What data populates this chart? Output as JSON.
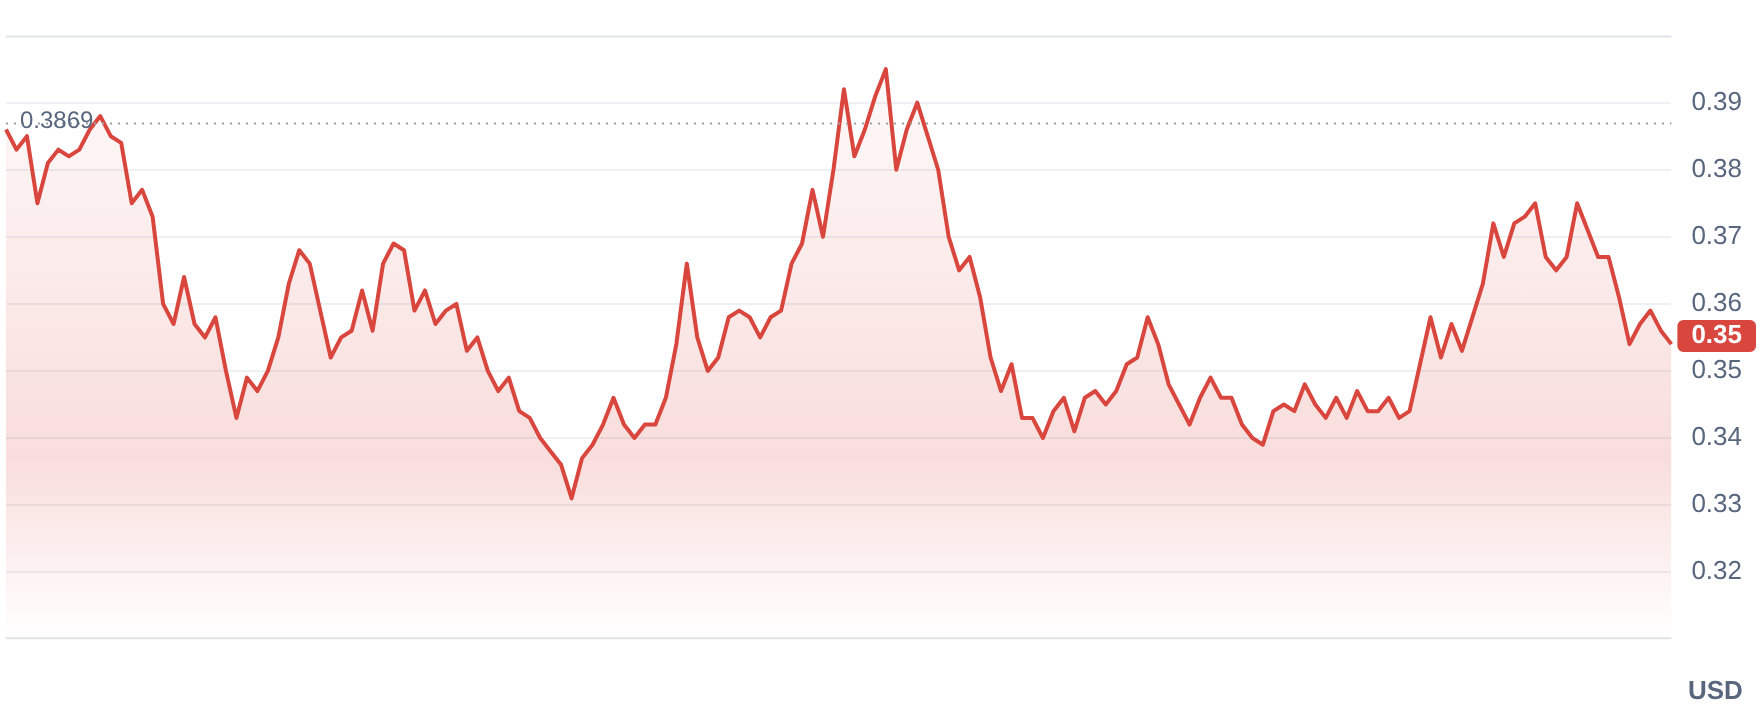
{
  "chart_data": {
    "type": "area",
    "categories": [
      null,
      null,
      null,
      null,
      null,
      null,
      null,
      null,
      null,
      null,
      null,
      null,
      null,
      null,
      null,
      null,
      null,
      null,
      null,
      null,
      null,
      null,
      null,
      null,
      null,
      null,
      null,
      null,
      null,
      null,
      null,
      null,
      null,
      null,
      null,
      null,
      null,
      null,
      null,
      null,
      null,
      null,
      null,
      null,
      null,
      null,
      null,
      null,
      null,
      null,
      null,
      null,
      null,
      null,
      null,
      null,
      null,
      null,
      null,
      null,
      null,
      null,
      null,
      null,
      null,
      null,
      null,
      null,
      null,
      null,
      null,
      null,
      null,
      null,
      null,
      null,
      null,
      null,
      null,
      null,
      null,
      null,
      null,
      null,
      null,
      null,
      null,
      null,
      null,
      null,
      null,
      null,
      null,
      null,
      null,
      null,
      null,
      null,
      null,
      null,
      null,
      null,
      null,
      null,
      null,
      null,
      null,
      null,
      null,
      null,
      null,
      null,
      null,
      null,
      null,
      null,
      null,
      null,
      null,
      null,
      null,
      null,
      null,
      null,
      null,
      null,
      null,
      null,
      null,
      null,
      null,
      null,
      null,
      null,
      null,
      null,
      null,
      null,
      null,
      null,
      null,
      null,
      null,
      null,
      null,
      null,
      null,
      null,
      null,
      null,
      null,
      null,
      null,
      null,
      null,
      null,
      null,
      null,
      null,
      null
    ],
    "series": [
      {
        "color": "#d9463e",
        "values": [
          0.386,
          0.383,
          0.385,
          0.375,
          0.381,
          0.383,
          0.382,
          0.383,
          0.386,
          0.388,
          0.385,
          0.384,
          0.375,
          0.377,
          0.373,
          0.36,
          0.357,
          0.364,
          0.357,
          0.355,
          0.358,
          0.35,
          0.343,
          0.349,
          0.347,
          0.35,
          0.355,
          0.363,
          0.368,
          0.366,
          0.359,
          0.352,
          0.355,
          0.356,
          0.362,
          0.356,
          0.366,
          0.369,
          0.368,
          0.359,
          0.362,
          0.357,
          0.359,
          0.36,
          0.353,
          0.355,
          0.35,
          0.347,
          0.349,
          0.344,
          0.343,
          0.34,
          0.338,
          0.336,
          0.331,
          0.337,
          0.339,
          0.342,
          0.346,
          0.342,
          0.34,
          0.342,
          0.342,
          0.346,
          0.354,
          0.366,
          0.355,
          0.35,
          0.352,
          0.358,
          0.359,
          0.358,
          0.355,
          0.358,
          0.359,
          0.366,
          0.369,
          0.377,
          0.37,
          0.38,
          0.392,
          0.382,
          0.386,
          0.391,
          0.395,
          0.38,
          0.386,
          0.39,
          0.385,
          0.38,
          0.37,
          0.365,
          0.367,
          0.361,
          0.352,
          0.347,
          0.351,
          0.343,
          0.343,
          0.34,
          0.344,
          0.346,
          0.341,
          0.346,
          0.347,
          0.345,
          0.347,
          0.351,
          0.352,
          0.358,
          0.354,
          0.348,
          0.345,
          0.342,
          0.346,
          0.349,
          0.346,
          0.346,
          0.342,
          0.34,
          0.339,
          0.344,
          0.345,
          0.344,
          0.348,
          0.345,
          0.343,
          0.346,
          0.343,
          0.347,
          0.344,
          0.344,
          0.346,
          0.343,
          0.344,
          0.351,
          0.358,
          0.352,
          0.357,
          0.353,
          0.358,
          0.363,
          0.372,
          0.367,
          0.372,
          0.373,
          0.375,
          0.367,
          0.365,
          0.367,
          0.375,
          0.371,
          0.367,
          0.367,
          0.361,
          0.354,
          0.357,
          0.359,
          0.356,
          0.354
        ]
      }
    ],
    "ylim": [
      0.31,
      0.4
    ],
    "yticks": [
      0.32,
      0.33,
      0.34,
      0.35,
      0.36,
      0.37,
      0.38,
      0.39
    ],
    "grid": "y",
    "legend": false,
    "marker": "none",
    "line_style": "solid",
    "ref_lines": [
      {
        "axis": "y",
        "value": 0.3869,
        "label": "0.3869",
        "color": "#9aa0a6",
        "line_style": "dotted"
      }
    ],
    "annotations": [
      "0.35",
      "USD"
    ]
  }
}
